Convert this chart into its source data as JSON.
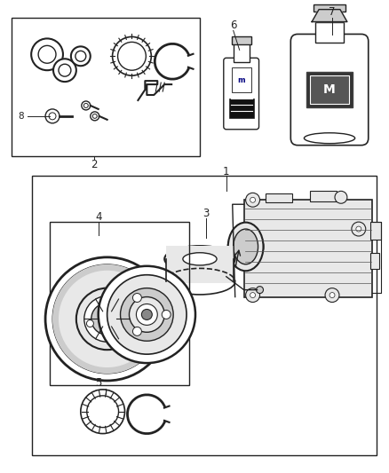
{
  "bg_color": "#ffffff",
  "fig_width": 4.38,
  "fig_height": 5.33,
  "dpi": 100,
  "line_color": "#222222",
  "text_color": "#222222",
  "font_size": 8.5,
  "gray_light": "#e8e8e8",
  "gray_mid": "#cccccc",
  "gray_dark": "#888888",
  "gray_darker": "#555555",
  "black_fill": "#111111"
}
